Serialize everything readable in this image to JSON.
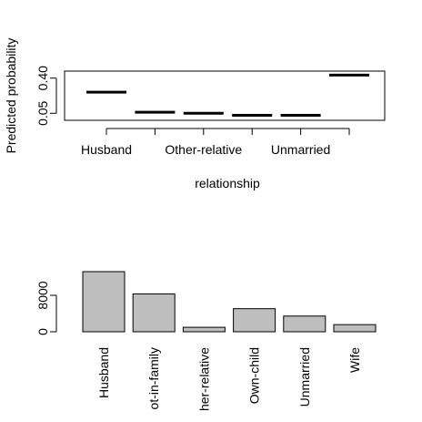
{
  "chart_data": [
    {
      "type": "line",
      "ylabel": "Predicted probability",
      "xlabel": "relationship",
      "categories": [
        "Husband",
        "Not-in-family",
        "Other-relative",
        "Own-child",
        "Unmarried",
        "Wife"
      ],
      "visible_x_tick_labels": [
        "Husband",
        "",
        "Other-relative",
        "",
        "Unmarried",
        ""
      ],
      "values": [
        0.26,
        0.06,
        0.05,
        0.03,
        0.03,
        0.43
      ],
      "y_ticks": [
        "0.05",
        "0.40"
      ],
      "y_tick_values": [
        0.05,
        0.4
      ],
      "ylim": [
        -0.02,
        0.47
      ],
      "grid": false
    },
    {
      "type": "bar",
      "categories": [
        "Husband",
        "Not-in-family",
        "Other-relative",
        "Own-child",
        "Unmarried",
        "Wife"
      ],
      "tick_labels": [
        "Husband",
        "ot-in-family",
        "her-relative",
        "Own-child",
        "Unmarried",
        "Wife"
      ],
      "values": [
        13193,
        8305,
        981,
        5068,
        3446,
        1568
      ],
      "y_ticks": [
        "0",
        "8000"
      ],
      "y_tick_values": [
        0,
        8000
      ],
      "ylim": [
        0,
        14000
      ],
      "bar_color": "#bebebe",
      "grid": false
    }
  ]
}
